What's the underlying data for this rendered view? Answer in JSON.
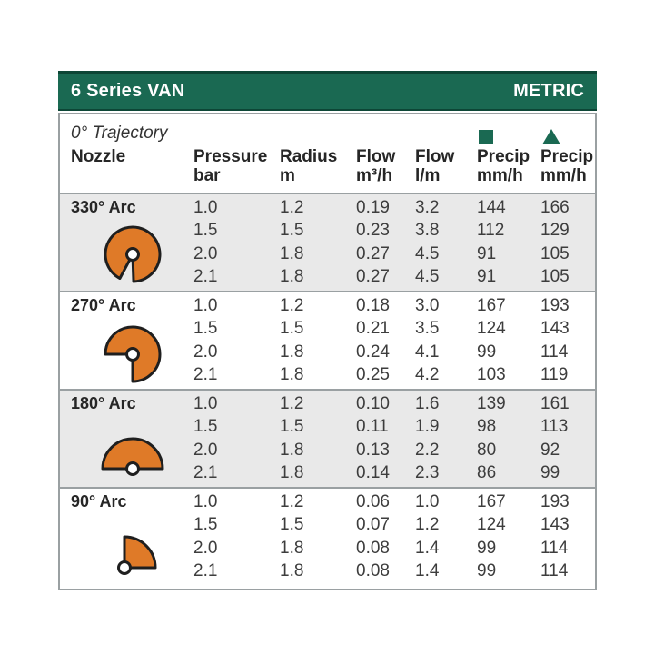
{
  "header": {
    "title": "6 Series VAN",
    "unit_label": "METRIC"
  },
  "subheader": {
    "trajectory": "0° Trajectory"
  },
  "columns": [
    {
      "label": "Nozzle",
      "sub": ""
    },
    {
      "label": "Pressure",
      "sub": "bar"
    },
    {
      "label": "Radius",
      "sub": "m"
    },
    {
      "label": "Flow",
      "sub": "m³/h"
    },
    {
      "label": "Flow",
      "sub": "l/m"
    },
    {
      "label": "Precip",
      "sub": "mm/h",
      "icon": "square"
    },
    {
      "label": "Precip",
      "sub": "mm/h",
      "icon": "triangle"
    }
  ],
  "table": {
    "groups": [
      {
        "arc_label": "330° Arc",
        "arc_degrees": 330,
        "shaded": true,
        "rows": [
          [
            "1.0",
            "1.2",
            "0.19",
            "3.2",
            "144",
            "166"
          ],
          [
            "1.5",
            "1.5",
            "0.23",
            "3.8",
            "112",
            "129"
          ],
          [
            "2.0",
            "1.8",
            "0.27",
            "4.5",
            "91",
            "105"
          ],
          [
            "2.1",
            "1.8",
            "0.27",
            "4.5",
            "91",
            "105"
          ]
        ]
      },
      {
        "arc_label": "270° Arc",
        "arc_degrees": 270,
        "shaded": false,
        "rows": [
          [
            "1.0",
            "1.2",
            "0.18",
            "3.0",
            "167",
            "193"
          ],
          [
            "1.5",
            "1.5",
            "0.21",
            "3.5",
            "124",
            "143"
          ],
          [
            "2.0",
            "1.8",
            "0.24",
            "4.1",
            "99",
            "114"
          ],
          [
            "2.1",
            "1.8",
            "0.25",
            "4.2",
            "103",
            "119"
          ]
        ]
      },
      {
        "arc_label": "180° Arc",
        "arc_degrees": 180,
        "shaded": true,
        "rows": [
          [
            "1.0",
            "1.2",
            "0.10",
            "1.6",
            "139",
            "161"
          ],
          [
            "1.5",
            "1.5",
            "0.11",
            "1.9",
            "98",
            "113"
          ],
          [
            "2.0",
            "1.8",
            "0.13",
            "2.2",
            "80",
            "92"
          ],
          [
            "2.1",
            "1.8",
            "0.14",
            "2.3",
            "86",
            "99"
          ]
        ]
      },
      {
        "arc_label": "90° Arc",
        "arc_degrees": 90,
        "shaded": false,
        "rows": [
          [
            "1.0",
            "1.2",
            "0.06",
            "1.0",
            "167",
            "193"
          ],
          [
            "1.5",
            "1.5",
            "0.07",
            "1.2",
            "124",
            "143"
          ],
          [
            "2.0",
            "1.8",
            "0.08",
            "1.4",
            "99",
            "114"
          ],
          [
            "2.1",
            "1.8",
            "0.08",
            "1.4",
            "99",
            "114"
          ]
        ]
      }
    ]
  },
  "colors": {
    "accent_green": "#1a6952",
    "accent_green_dark": "#0d4636",
    "nozzle_orange": "#df7a28",
    "shaded_row_bg": "#e9e9e9",
    "table_border": "#9aa0a2"
  }
}
